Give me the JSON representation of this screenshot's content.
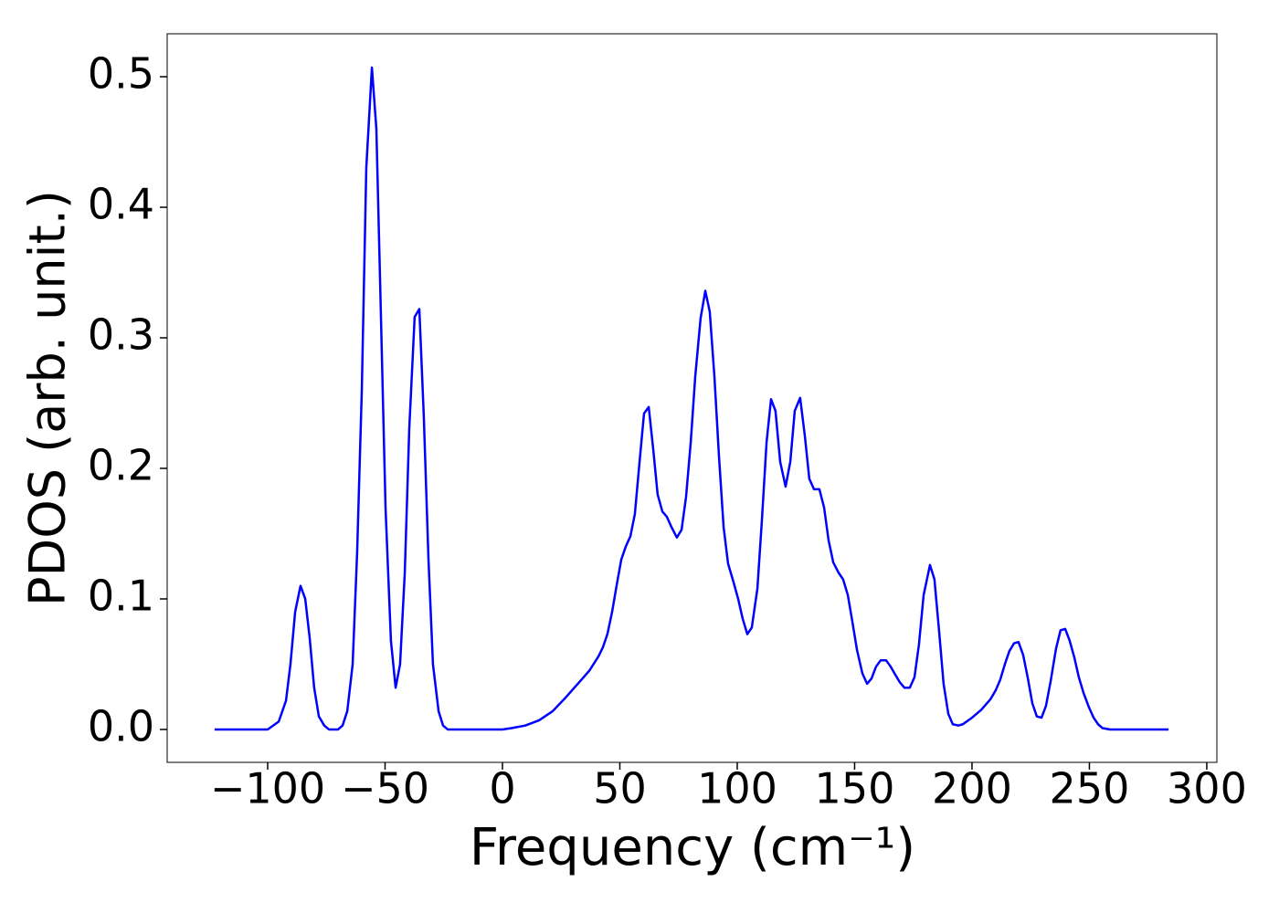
{
  "chart_data": {
    "type": "line",
    "xlabel": "Frequency (cm⁻¹)",
    "ylabel": "PDOS (arb. unit.)",
    "xlim": [
      -142.8,
      304.3
    ],
    "ylim": [
      -0.0252,
      0.5329
    ],
    "xticks": [
      {
        "value": -100,
        "label": "−100"
      },
      {
        "value": -50,
        "label": "−50"
      },
      0,
      50,
      100,
      150,
      200,
      250,
      300
    ],
    "yticks": [
      {
        "value": 0,
        "label": "0.0"
      },
      0.1,
      0.2,
      0.3,
      0.4,
      0.5
    ],
    "grid": false,
    "series": [
      {
        "color": "#0000ff",
        "x": [
          -122.6,
          -100,
          -95.3,
          -92.2,
          -90.3,
          -88.3,
          -86,
          -84,
          -82.1,
          -80.2,
          -78.2,
          -75.9,
          -73.9,
          -70,
          -68.1,
          -66.1,
          -63.8,
          -61.9,
          -59.9,
          -58,
          -55.6,
          -53.7,
          -51.8,
          -49.8,
          -47.5,
          -45.5,
          -43.6,
          -41.6,
          -39.7,
          -37.4,
          -35.4,
          -33.5,
          -31.5,
          -29.6,
          -27.2,
          -25.3,
          -23.3,
          0,
          3.9,
          9.7,
          15.6,
          21.4,
          27.2,
          33.1,
          37,
          40.9,
          42.8,
          44.7,
          46.7,
          48.6,
          50.6,
          52.5,
          54.5,
          56.4,
          58.4,
          60.3,
          62.3,
          64.2,
          66.1,
          68.1,
          70,
          72,
          74.3,
          76.3,
          78.2,
          80.2,
          82.1,
          84.4,
          86.4,
          88.3,
          90.3,
          92.2,
          94.2,
          96.1,
          98.4,
          100.4,
          102.3,
          104.3,
          106.2,
          108.6,
          110.5,
          112.5,
          114.4,
          116.3,
          118.3,
          120.6,
          122.6,
          124.5,
          126.8,
          128.8,
          130.7,
          132.7,
          135,
          137,
          138.9,
          140.9,
          143.2,
          145.1,
          147.1,
          149,
          151,
          153.3,
          155.3,
          157.2,
          159.1,
          161.1,
          163.4,
          165.4,
          167.3,
          169.3,
          171.2,
          173.5,
          175.5,
          177.4,
          179.4,
          182.1,
          184,
          186,
          187.9,
          189.9,
          191.8,
          194.2,
          196.1,
          200,
          203.9,
          207.8,
          210.1,
          212,
          214,
          215.9,
          217.9,
          219.8,
          221.8,
          223.7,
          225.7,
          227.6,
          229.6,
          231.5,
          233.5,
          235.8,
          237.7,
          239.7,
          241.6,
          243.6,
          245.5,
          247.5,
          249.8,
          251.8,
          253.7,
          255.6,
          258.8,
          283.7
        ],
        "values": [
          0,
          0,
          0.006,
          0.022,
          0.05,
          0.09,
          0.11,
          0.1,
          0.07,
          0.032,
          0.01,
          0.003,
          0,
          0,
          0.003,
          0.014,
          0.05,
          0.135,
          0.26,
          0.43,
          0.507,
          0.46,
          0.32,
          0.17,
          0.068,
          0.032,
          0.05,
          0.12,
          0.23,
          0.316,
          0.322,
          0.24,
          0.13,
          0.05,
          0.014,
          0.003,
          0,
          0,
          0.001,
          0.003,
          0.007,
          0.014,
          0.025,
          0.037,
          0.045,
          0.056,
          0.063,
          0.073,
          0.09,
          0.11,
          0.13,
          0.14,
          0.148,
          0.165,
          0.205,
          0.242,
          0.247,
          0.215,
          0.18,
          0.167,
          0.163,
          0.155,
          0.147,
          0.153,
          0.178,
          0.22,
          0.27,
          0.315,
          0.336,
          0.32,
          0.27,
          0.21,
          0.155,
          0.127,
          0.113,
          0.1,
          0.085,
          0.073,
          0.078,
          0.108,
          0.16,
          0.22,
          0.253,
          0.244,
          0.205,
          0.186,
          0.205,
          0.244,
          0.254,
          0.225,
          0.192,
          0.184,
          0.184,
          0.17,
          0.145,
          0.128,
          0.12,
          0.115,
          0.103,
          0.083,
          0.061,
          0.043,
          0.035,
          0.039,
          0.048,
          0.053,
          0.053,
          0.048,
          0.042,
          0.036,
          0.032,
          0.032,
          0.04,
          0.065,
          0.103,
          0.126,
          0.115,
          0.075,
          0.035,
          0.012,
          0.004,
          0.003,
          0.004,
          0.009,
          0.015,
          0.023,
          0.03,
          0.038,
          0.05,
          0.06,
          0.066,
          0.067,
          0.057,
          0.04,
          0.02,
          0.01,
          0.009,
          0.018,
          0.037,
          0.062,
          0.076,
          0.077,
          0.068,
          0.055,
          0.04,
          0.028,
          0.017,
          0.009,
          0.004,
          0.001,
          0,
          0
        ]
      }
    ]
  }
}
